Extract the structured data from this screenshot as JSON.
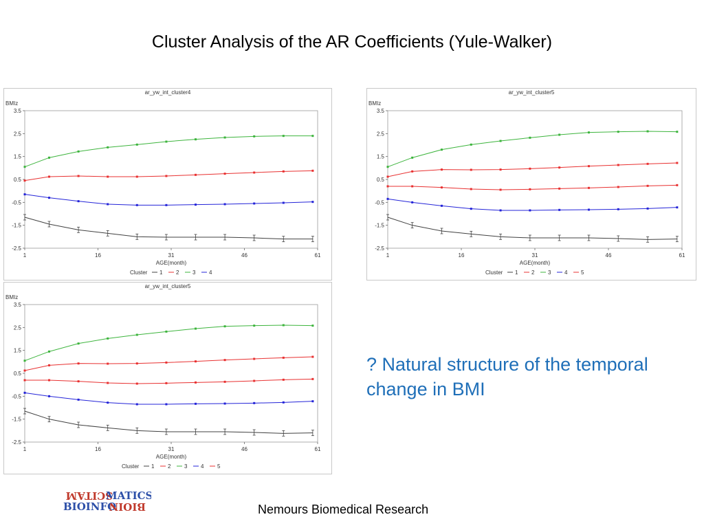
{
  "slide": {
    "title": "Cluster Analysis of the AR Coefficients (Yule-Walker)",
    "note": "? Natural structure of the temporal change in BMI",
    "footer": "Nemours Biomedical Research",
    "logo_text": "BIOINFORMATICS"
  },
  "chart_data": [
    {
      "type": "line",
      "title": "ar_yw_int_cluster4",
      "ylabel": "BMIz",
      "xlabel": "AGE(month)",
      "x": [
        1,
        6,
        12,
        18,
        24,
        30,
        36,
        42,
        48,
        54,
        60
      ],
      "xticks": [
        1,
        16,
        31,
        46,
        61
      ],
      "yticks": [
        3.5,
        2.5,
        1.5,
        0.5,
        -0.5,
        -1.5,
        -2.5
      ],
      "ylim": [
        -2.5,
        3.5
      ],
      "xlim": [
        1,
        61
      ],
      "legend_title": "Cluster",
      "legend_position": "bottom",
      "series": [
        {
          "name": "1",
          "color": "#404040",
          "error_bars": true,
          "values": [
            -1.15,
            -1.45,
            -1.7,
            -1.85,
            -2.0,
            -2.02,
            -2.02,
            -2.02,
            -2.05,
            -2.1,
            -2.1
          ]
        },
        {
          "name": "2",
          "color": "#e83030",
          "error_bars": false,
          "values": [
            0.45,
            0.62,
            0.65,
            0.62,
            0.62,
            0.65,
            0.7,
            0.75,
            0.8,
            0.85,
            0.88
          ]
        },
        {
          "name": "3",
          "color": "#3cb43c",
          "error_bars": false,
          "values": [
            1.05,
            1.45,
            1.72,
            1.9,
            2.02,
            2.15,
            2.25,
            2.33,
            2.38,
            2.4,
            2.4
          ]
        },
        {
          "name": "4",
          "color": "#2323d8",
          "error_bars": false,
          "values": [
            -0.15,
            -0.3,
            -0.45,
            -0.58,
            -0.62,
            -0.62,
            -0.6,
            -0.58,
            -0.55,
            -0.52,
            -0.48
          ]
        }
      ]
    },
    {
      "type": "line",
      "title": "ar_yw_int_cluster5",
      "ylabel": "BMIz",
      "xlabel": "AGE(month)",
      "x": [
        1,
        6,
        12,
        18,
        24,
        30,
        36,
        42,
        48,
        54,
        60
      ],
      "xticks": [
        1,
        16,
        31,
        46,
        61
      ],
      "yticks": [
        3.5,
        2.5,
        1.5,
        0.5,
        -0.5,
        -1.5,
        -2.5
      ],
      "ylim": [
        -2.5,
        3.5
      ],
      "xlim": [
        1,
        61
      ],
      "legend_title": "Cluster",
      "legend_position": "bottom",
      "series": [
        {
          "name": "1",
          "color": "#404040",
          "error_bars": true,
          "values": [
            -1.15,
            -1.5,
            -1.75,
            -1.88,
            -2.0,
            -2.05,
            -2.05,
            -2.05,
            -2.08,
            -2.12,
            -2.1
          ]
        },
        {
          "name": "2",
          "color": "#e83030",
          "error_bars": false,
          "values": [
            0.2,
            0.2,
            0.15,
            0.08,
            0.05,
            0.07,
            0.1,
            0.13,
            0.17,
            0.22,
            0.25
          ]
        },
        {
          "name": "3",
          "color": "#3cb43c",
          "error_bars": false,
          "values": [
            1.05,
            1.45,
            1.8,
            2.02,
            2.18,
            2.32,
            2.45,
            2.55,
            2.58,
            2.6,
            2.58
          ]
        },
        {
          "name": "4",
          "color": "#2323d8",
          "error_bars": false,
          "values": [
            -0.35,
            -0.5,
            -0.65,
            -0.78,
            -0.85,
            -0.85,
            -0.83,
            -0.82,
            -0.8,
            -0.77,
            -0.72
          ]
        },
        {
          "name": "5",
          "color": "#e83030",
          "error_bars": false,
          "values": [
            0.62,
            0.85,
            0.93,
            0.92,
            0.93,
            0.97,
            1.02,
            1.08,
            1.13,
            1.18,
            1.22
          ]
        }
      ]
    },
    {
      "type": "line",
      "title": "ar_yw_int_cluster5",
      "ylabel": "BMIz",
      "xlabel": "AGE(month)",
      "x": [
        1,
        6,
        12,
        18,
        24,
        30,
        36,
        42,
        48,
        54,
        60
      ],
      "xticks": [
        1,
        16,
        31,
        46,
        61
      ],
      "yticks": [
        3.5,
        2.5,
        1.5,
        0.5,
        -0.5,
        -1.5,
        -2.5
      ],
      "ylim": [
        -2.5,
        3.5
      ],
      "xlim": [
        1,
        61
      ],
      "legend_title": "Cluster",
      "legend_position": "bottom",
      "series": [
        {
          "name": "1",
          "color": "#404040",
          "error_bars": true,
          "values": [
            -1.15,
            -1.5,
            -1.75,
            -1.88,
            -2.0,
            -2.05,
            -2.05,
            -2.05,
            -2.08,
            -2.12,
            -2.1
          ]
        },
        {
          "name": "2",
          "color": "#e83030",
          "error_bars": false,
          "values": [
            0.2,
            0.2,
            0.15,
            0.08,
            0.05,
            0.07,
            0.1,
            0.13,
            0.17,
            0.22,
            0.25
          ]
        },
        {
          "name": "3",
          "color": "#3cb43c",
          "error_bars": false,
          "values": [
            1.05,
            1.45,
            1.8,
            2.02,
            2.18,
            2.32,
            2.45,
            2.55,
            2.58,
            2.6,
            2.58
          ]
        },
        {
          "name": "4",
          "color": "#2323d8",
          "error_bars": false,
          "values": [
            -0.35,
            -0.5,
            -0.65,
            -0.78,
            -0.85,
            -0.85,
            -0.83,
            -0.82,
            -0.8,
            -0.77,
            -0.72
          ]
        },
        {
          "name": "5",
          "color": "#e83030",
          "error_bars": false,
          "values": [
            0.62,
            0.85,
            0.93,
            0.92,
            0.93,
            0.97,
            1.02,
            1.08,
            1.13,
            1.18,
            1.22
          ]
        }
      ]
    }
  ]
}
